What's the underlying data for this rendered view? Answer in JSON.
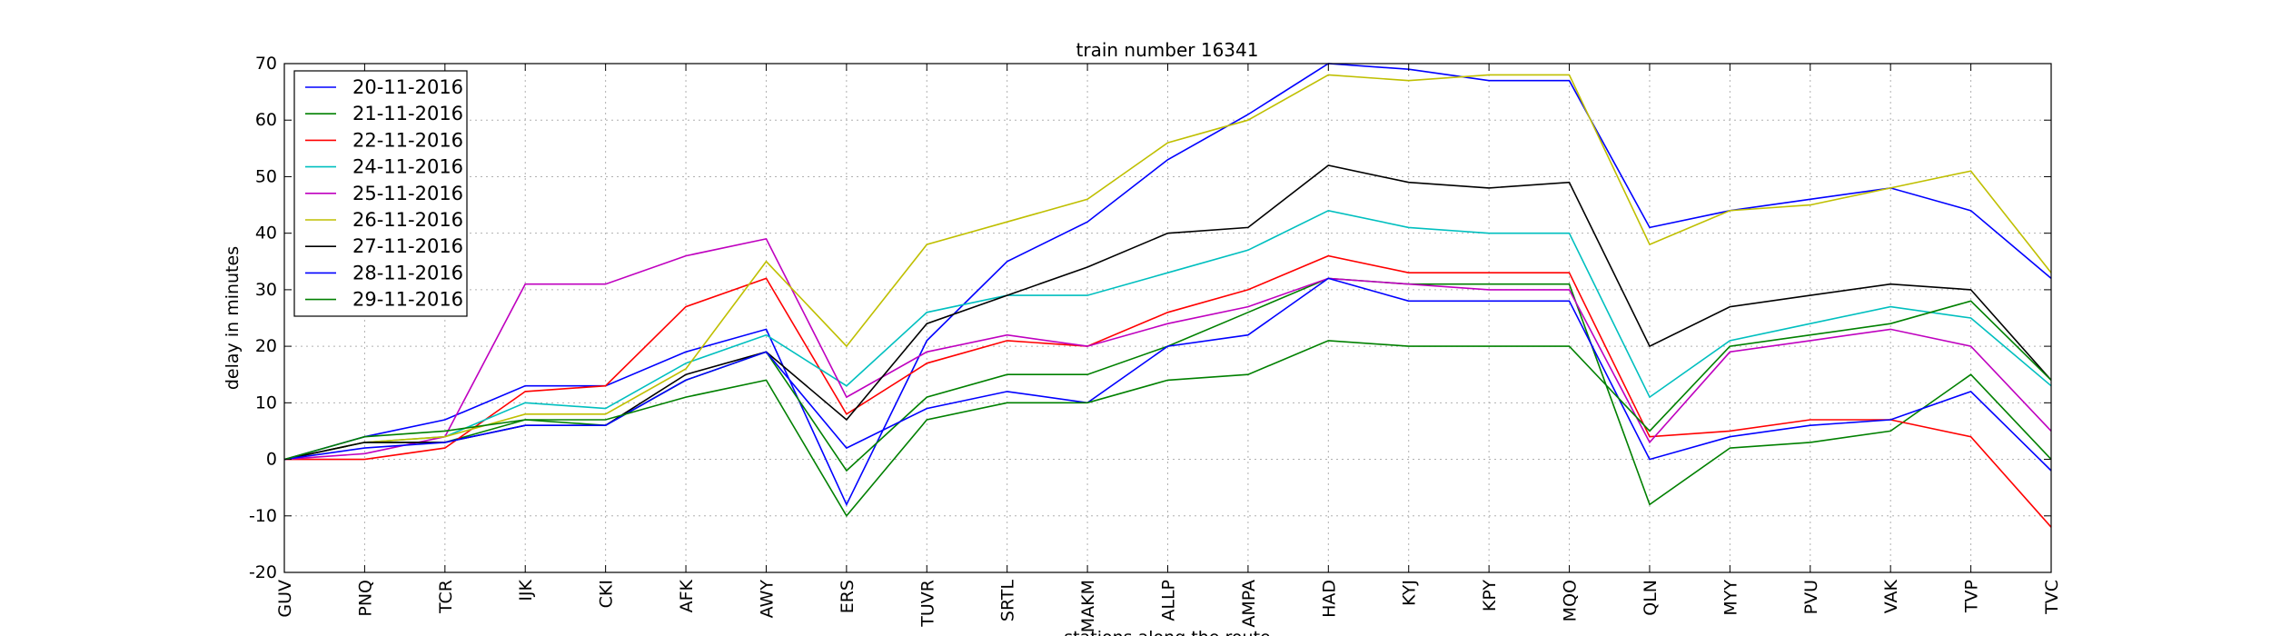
{
  "chart_data": {
    "type": "line",
    "title": "train number 16341",
    "xlabel": "stations along the route",
    "ylabel": "delay in minutes",
    "ylim": [
      -20,
      70
    ],
    "yticks": [
      -20,
      -10,
      0,
      10,
      20,
      30,
      40,
      50,
      60,
      70
    ],
    "grid": true,
    "legend_position": "top-left",
    "categories": [
      "GUV",
      "PNQ",
      "TCR",
      "IJK",
      "CKI",
      "AFK",
      "AWY",
      "ERS",
      "TUVR",
      "SRTL",
      "MAKM",
      "ALLP",
      "AMPA",
      "HAD",
      "KYJ",
      "KPY",
      "MQO",
      "QLN",
      "MYY",
      "PVU",
      "VAK",
      "TVP",
      "TVC"
    ],
    "series": [
      {
        "name": "20-11-2016",
        "color": "#0000ff",
        "values": [
          0,
          4,
          7,
          13,
          13,
          19,
          23,
          -8,
          21,
          35,
          42,
          53,
          61,
          70,
          69,
          67,
          67,
          41,
          44,
          46,
          48,
          44,
          32
        ]
      },
      {
        "name": "21-11-2016",
        "color": "#008000",
        "values": [
          0,
          3,
          3,
          7,
          6,
          14,
          19,
          -2,
          11,
          15,
          15,
          20,
          26,
          32,
          31,
          31,
          31,
          -8,
          2,
          3,
          5,
          15,
          0
        ]
      },
      {
        "name": "22-11-2016",
        "color": "#ff0000",
        "values": [
          0,
          0,
          2,
          12,
          13,
          27,
          32,
          8,
          17,
          21,
          20,
          26,
          30,
          36,
          33,
          33,
          33,
          4,
          5,
          7,
          7,
          4,
          -12
        ]
      },
      {
        "name": "24-11-2016",
        "color": "#00bfbf",
        "values": [
          0,
          3,
          4,
          10,
          9,
          17,
          22,
          13,
          26,
          29,
          29,
          33,
          37,
          44,
          41,
          40,
          40,
          11,
          21,
          24,
          27,
          25,
          13
        ]
      },
      {
        "name": "25-11-2016",
        "color": "#bf00bf",
        "values": [
          0,
          1,
          4,
          31,
          31,
          36,
          39,
          11,
          19,
          22,
          20,
          24,
          27,
          32,
          31,
          30,
          30,
          3,
          19,
          21,
          23,
          20,
          5
        ]
      },
      {
        "name": "26-11-2016",
        "color": "#bfbf00",
        "values": [
          0,
          3,
          4,
          8,
          8,
          16,
          35,
          20,
          38,
          42,
          46,
          56,
          60,
          68,
          67,
          68,
          68,
          38,
          44,
          45,
          48,
          51,
          33
        ]
      },
      {
        "name": "27-11-2016",
        "color": "#000000",
        "values": [
          0,
          3,
          3,
          6,
          6,
          15,
          19,
          7,
          24,
          29,
          34,
          40,
          41,
          52,
          49,
          48,
          49,
          20,
          27,
          29,
          31,
          30,
          14
        ]
      },
      {
        "name": "28-11-2016",
        "color": "#0000ff",
        "values": [
          0,
          2,
          3,
          6,
          6,
          14,
          19,
          2,
          9,
          12,
          10,
          20,
          22,
          32,
          28,
          28,
          28,
          0,
          4,
          6,
          7,
          12,
          -2
        ]
      },
      {
        "name": "29-11-2016",
        "color": "#008000",
        "values": [
          0,
          4,
          5,
          7,
          7,
          11,
          14,
          -10,
          7,
          10,
          10,
          14,
          15,
          21,
          20,
          20,
          20,
          5,
          20,
          22,
          24,
          28,
          14
        ]
      }
    ]
  }
}
